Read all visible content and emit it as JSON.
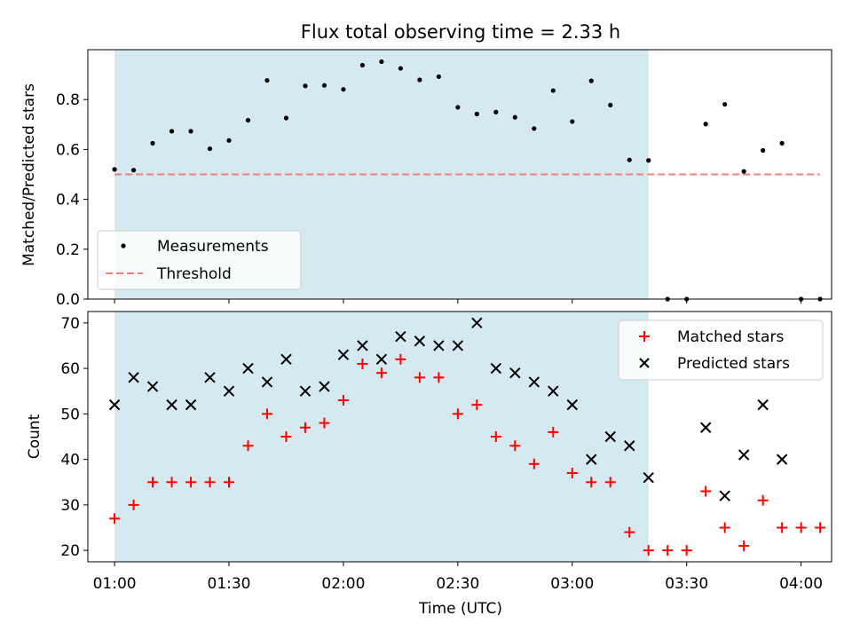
{
  "chart_data": [
    {
      "type": "scatter",
      "title": "Flux total observing time = 2.33 h",
      "xlabel": "",
      "ylabel": "Matched/Predicted stars",
      "xlim": [
        "00:53",
        "04:08"
      ],
      "ylim": [
        0,
        1.0
      ],
      "yticks": [
        0.0,
        0.2,
        0.4,
        0.6,
        0.8
      ],
      "ytick_labels": [
        "0.0",
        "0.2",
        "0.4",
        "0.6",
        "0.8"
      ],
      "grid": false,
      "legend": {
        "placement": "lower-left",
        "entries": [
          "Measurements",
          "Threshold"
        ]
      },
      "shaded_region": {
        "x": [
          "01:00",
          "03:20"
        ],
        "color": "#d4eaf0"
      },
      "threshold": {
        "name": "Threshold",
        "value": 0.5,
        "x": [
          "01:00",
          "04:05"
        ],
        "color": "#f08080"
      },
      "series": [
        {
          "name": "Measurements",
          "color": "#000000",
          "x": [
            "01:00",
            "01:05",
            "01:10",
            "01:15",
            "01:20",
            "01:25",
            "01:30",
            "01:35",
            "01:40",
            "01:45",
            "01:50",
            "01:55",
            "02:00",
            "02:05",
            "02:10",
            "02:15",
            "02:20",
            "02:25",
            "02:30",
            "02:35",
            "02:40",
            "02:45",
            "02:50",
            "02:55",
            "03:00",
            "03:05",
            "03:10",
            "03:15",
            "03:20",
            "03:25",
            "03:30",
            "03:35",
            "03:40",
            "03:45",
            "03:50",
            "03:55",
            "04:00",
            "04:05"
          ],
          "y": [
            0.52,
            0.517,
            0.625,
            0.673,
            0.673,
            0.603,
            0.636,
            0.717,
            0.877,
            0.726,
            0.855,
            0.857,
            0.841,
            0.938,
            0.952,
            0.925,
            0.879,
            0.892,
            0.769,
            0.742,
            0.75,
            0.729,
            0.684,
            0.836,
            0.712,
            0.875,
            0.778,
            0.558,
            0.556,
            0.0,
            0.0,
            0.702,
            0.781,
            0.512,
            0.596,
            0.625,
            0.0,
            0.0
          ]
        }
      ]
    },
    {
      "type": "scatter",
      "title": "",
      "xlabel": "Time (UTC)",
      "ylabel": "Count",
      "xlim": [
        "00:53",
        "04:08"
      ],
      "ylim": [
        17.5,
        72.5
      ],
      "yticks": [
        20,
        30,
        40,
        50,
        60,
        70
      ],
      "ytick_labels": [
        "20",
        "30",
        "40",
        "50",
        "60",
        "70"
      ],
      "xticks": [
        "01:00",
        "01:30",
        "02:00",
        "02:30",
        "03:00",
        "03:30",
        "04:00"
      ],
      "xtick_labels": [
        "01:00",
        "01:30",
        "02:00",
        "02:30",
        "03:00",
        "03:30",
        "04:00"
      ],
      "grid": false,
      "legend": {
        "placement": "upper-right",
        "entries": [
          "Matched stars",
          "Predicted stars"
        ]
      },
      "shaded_region": {
        "x": [
          "01:00",
          "03:20"
        ],
        "color": "#d4eaf0"
      },
      "series": [
        {
          "name": "Matched stars",
          "marker": "plus",
          "color": "#ff0000",
          "x": [
            "01:00",
            "01:05",
            "01:10",
            "01:15",
            "01:20",
            "01:25",
            "01:30",
            "01:35",
            "01:40",
            "01:45",
            "01:50",
            "01:55",
            "02:00",
            "02:05",
            "02:10",
            "02:15",
            "02:20",
            "02:25",
            "02:30",
            "02:35",
            "02:40",
            "02:45",
            "02:50",
            "02:55",
            "03:00",
            "03:05",
            "03:10",
            "03:15",
            "03:20",
            "03:25",
            "03:30",
            "03:35",
            "03:40",
            "03:45",
            "03:50",
            "03:55",
            "04:00",
            "04:05"
          ],
          "y": [
            27,
            30,
            35,
            35,
            35,
            35,
            35,
            43,
            50,
            45,
            47,
            48,
            53,
            61,
            59,
            62,
            58,
            58,
            50,
            52,
            45,
            43,
            39,
            46,
            37,
            35,
            35,
            24,
            20,
            20,
            20,
            33,
            25,
            21,
            31,
            25,
            25,
            25
          ]
        },
        {
          "name": "Predicted stars",
          "marker": "x",
          "color": "#000000",
          "x": [
            "01:00",
            "01:05",
            "01:10",
            "01:15",
            "01:20",
            "01:25",
            "01:30",
            "01:35",
            "01:40",
            "01:45",
            "01:50",
            "01:55",
            "02:00",
            "02:05",
            "02:10",
            "02:15",
            "02:20",
            "02:25",
            "02:30",
            "02:35",
            "02:40",
            "02:45",
            "02:50",
            "02:55",
            "03:00",
            "03:05",
            "03:10",
            "03:15",
            "03:20",
            "03:35",
            "03:40",
            "03:45",
            "03:50",
            "03:55"
          ],
          "y": [
            52,
            58,
            56,
            52,
            52,
            58,
            55,
            60,
            57,
            62,
            55,
            56,
            63,
            65,
            62,
            67,
            66,
            65,
            65,
            70,
            60,
            59,
            57,
            55,
            52,
            40,
            45,
            43,
            36,
            47,
            32,
            41,
            52,
            40
          ]
        }
      ]
    }
  ]
}
